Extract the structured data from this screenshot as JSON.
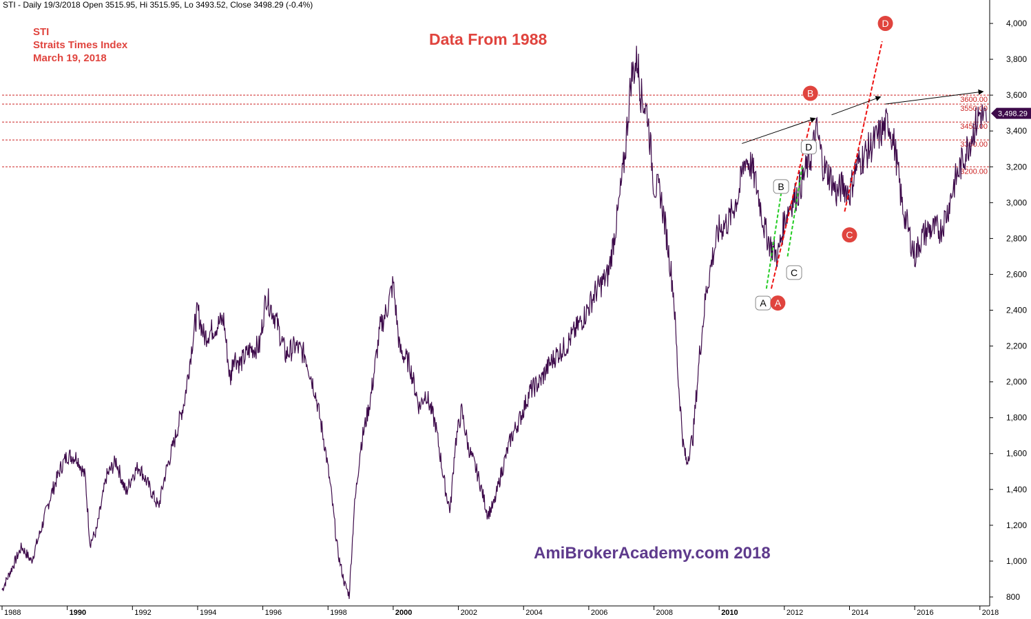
{
  "header": {
    "info": "STI - Daily 19/3/2018 Open 3515.95, Hi 3515.95, Lo 3493.52, Close 3498.29 (-0.4%)"
  },
  "annotations": {
    "ticker": "STI",
    "name": "Straits Times Index",
    "date": "March 19, 2018",
    "title": "Data From 1988",
    "watermark": "AmiBrokerAcademy.com 2018",
    "last_price": "3,498.29"
  },
  "colors": {
    "price_line": "#3d0a4a",
    "level_line": "#cc2222",
    "red_trend": "#ee1111",
    "green_trend": "#22cc22",
    "marker_red": "#e0443e",
    "label_text": "#e0443e",
    "watermark": "#5e3a8c"
  },
  "chart_data": {
    "type": "line",
    "title": "",
    "xlabel": "",
    "ylabel": "",
    "ylim": [
      750,
      4100
    ],
    "xlim": [
      1988.0,
      2018.3
    ],
    "y_ticks": [
      800,
      1000,
      1200,
      1400,
      1600,
      1800,
      2000,
      2200,
      2400,
      2600,
      2800,
      3000,
      3200,
      3400,
      3600,
      3800,
      4000
    ],
    "y_tick_labels": [
      "800",
      "1,000",
      "1,200",
      "1,400",
      "1,600",
      "1,800",
      "2,000",
      "2,200",
      "2,400",
      "2,600",
      "2,800",
      "3,000",
      "3,200",
      "3,400",
      "3,600",
      "3,800",
      "4,000"
    ],
    "x_ticks": [
      1988,
      1990,
      1992,
      1994,
      1996,
      1998,
      2000,
      2002,
      2004,
      2006,
      2008,
      2010,
      2012,
      2014,
      2016,
      2018
    ],
    "x_tick_labels": [
      "1988",
      "1990",
      "1992",
      "1994",
      "1996",
      "1998",
      "2000",
      "2002",
      "2004",
      "2006",
      "2008",
      "2010",
      "2012",
      "2014",
      "2016",
      "2018"
    ],
    "bold_x_ticks": [
      "1990",
      "2000",
      "2010"
    ],
    "series": [
      {
        "x": [
          1988.0,
          1988.3,
          1988.6,
          1988.9,
          1989.2,
          1989.5,
          1989.8,
          1990.0,
          1990.3,
          1990.55,
          1990.7,
          1990.9,
          1991.2,
          1991.5,
          1991.8,
          1992.0,
          1992.2,
          1992.5,
          1992.8,
          1993.0,
          1993.3,
          1993.6,
          1993.9,
          1994.0,
          1994.2,
          1994.5,
          1994.8,
          1995.0,
          1995.1,
          1995.3,
          1995.6,
          1995.9,
          1996.1,
          1996.4,
          1996.7,
          1997.0,
          1997.3,
          1997.6,
          1997.9,
          1998.1,
          1998.3,
          1998.5,
          1998.65,
          1998.8,
          1999.0,
          1999.3,
          1999.6,
          1999.8,
          2000.0,
          2000.2,
          2000.5,
          2000.8,
          2001.0,
          2001.3,
          2001.6,
          2001.75,
          2001.9,
          2002.1,
          2002.3,
          2002.6,
          2002.9,
          2003.1,
          2003.3,
          2003.6,
          2003.9,
          2004.2,
          2004.5,
          2004.8,
          2005.0,
          2005.3,
          2005.6,
          2005.9,
          2006.2,
          2006.4,
          2006.6,
          2006.9,
          2007.1,
          2007.3,
          2007.5,
          2007.6,
          2007.8,
          2008.0,
          2008.2,
          2008.4,
          2008.6,
          2008.75,
          2008.9,
          2009.0,
          2009.2,
          2009.4,
          2009.6,
          2009.8,
          2010.0,
          2010.3,
          2010.6,
          2010.8,
          2011.0,
          2011.2,
          2011.4,
          2011.6,
          2011.8,
          2012.0,
          2012.2,
          2012.4,
          2012.6,
          2012.8,
          2013.0,
          2013.2,
          2013.4,
          2013.6,
          2013.8,
          2014.0,
          2014.2,
          2014.4,
          2014.6,
          2014.8,
          2015.0,
          2015.2,
          2015.4,
          2015.6,
          2015.8,
          2016.0,
          2016.2,
          2016.4,
          2016.6,
          2016.8,
          2017.0,
          2017.2,
          2017.4,
          2017.6,
          2017.8,
          2018.0,
          2018.2
        ],
        "values": [
          840,
          960,
          1080,
          1000,
          1180,
          1370,
          1520,
          1590,
          1580,
          1470,
          1100,
          1170,
          1470,
          1560,
          1380,
          1480,
          1530,
          1420,
          1300,
          1480,
          1680,
          1900,
          2300,
          2400,
          2250,
          2300,
          2350,
          2000,
          2150,
          2100,
          2180,
          2200,
          2480,
          2350,
          2150,
          2200,
          2150,
          1950,
          1650,
          1380,
          1050,
          880,
          810,
          1280,
          1640,
          1900,
          2300,
          2400,
          2550,
          2180,
          2100,
          1860,
          1940,
          1760,
          1400,
          1280,
          1650,
          1840,
          1640,
          1480,
          1260,
          1320,
          1480,
          1680,
          1800,
          1950,
          2000,
          2100,
          2150,
          2200,
          2290,
          2380,
          2500,
          2550,
          2600,
          2950,
          3250,
          3700,
          3800,
          3600,
          3500,
          3100,
          3050,
          2800,
          2500,
          2000,
          1650,
          1550,
          1700,
          2150,
          2500,
          2700,
          2850,
          2900,
          3050,
          3250,
          3200,
          3050,
          2850,
          2750,
          2700,
          2900,
          3000,
          3050,
          3150,
          3250,
          3400,
          3200,
          3150,
          3050,
          3100,
          3050,
          3200,
          3250,
          3300,
          3350,
          3400,
          3450,
          3300,
          3000,
          2850,
          2700,
          2800,
          2850,
          2850,
          2850,
          2950,
          3100,
          3200,
          3300,
          3400,
          3500,
          3450
        ]
      }
    ],
    "horizontal_levels": [
      {
        "value": 3600,
        "label": "3600.00"
      },
      {
        "value": 3550,
        "label": "3550.00"
      },
      {
        "value": 3450,
        "label": "3450.00"
      },
      {
        "value": 3350,
        "label": "3350.00"
      },
      {
        "value": 3200,
        "label": "3200.00"
      }
    ],
    "wave_labels_white": [
      {
        "text": "A",
        "x": 2011.35,
        "y": 2440
      },
      {
        "text": "B",
        "x": 2011.9,
        "y": 3090
      },
      {
        "text": "C",
        "x": 2012.3,
        "y": 2610
      },
      {
        "text": "D",
        "x": 2012.75,
        "y": 3310
      }
    ],
    "wave_labels_red": [
      {
        "text": "A",
        "x": 2011.8,
        "y": 2440
      },
      {
        "text": "B",
        "x": 2012.8,
        "y": 3610
      },
      {
        "text": "C",
        "x": 2014.0,
        "y": 2820
      },
      {
        "text": "D",
        "x": 2015.1,
        "y": 4000
      }
    ],
    "red_trendlines": [
      {
        "x1": 2011.6,
        "y1": 2520,
        "x2": 2012.8,
        "y2": 3450
      },
      {
        "x1": 2013.85,
        "y1": 2950,
        "x2": 2015.0,
        "y2": 3900
      }
    ],
    "green_trendlines": [
      {
        "x1": 2011.45,
        "y1": 2520,
        "x2": 2011.9,
        "y2": 3050
      },
      {
        "x1": 2012.1,
        "y1": 2700,
        "x2": 2012.55,
        "y2": 3200
      }
    ],
    "arrows": [
      {
        "x1": 2010.7,
        "y1": 3330,
        "x2": 2012.95,
        "y2": 3470
      },
      {
        "x1": 2013.45,
        "y1": 3490,
        "x2": 2014.95,
        "y2": 3590
      },
      {
        "x1": 2015.1,
        "y1": 3550,
        "x2": 2018.1,
        "y2": 3620
      }
    ]
  }
}
